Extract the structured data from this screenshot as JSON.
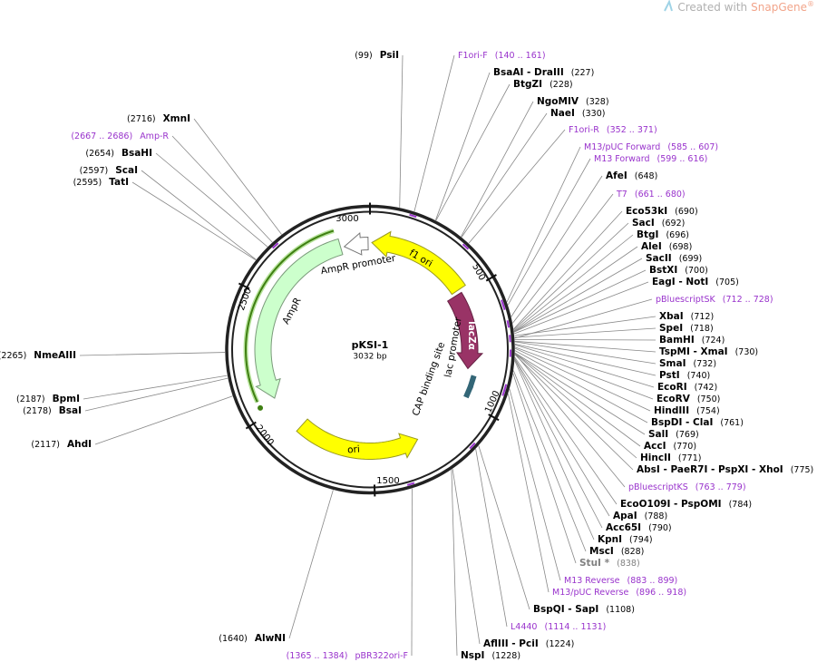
{
  "header": {
    "prefix": "Created with",
    "brand": "SnapGene",
    "mark": "®"
  },
  "plasmid": {
    "name": "pKSI-1",
    "length": "3032 bp"
  },
  "ruler": [
    "3000",
    "500",
    "1000",
    "1500",
    "2000",
    "2500"
  ],
  "features": [
    "f1 ori",
    "lacZα",
    "AmpR promoter",
    "AmpR",
    "ori",
    "lac promoter",
    "CAP binding site"
  ],
  "primer_color": "#9933cc",
  "enzymes": [
    {
      "name": "PsiI",
      "pos": "(99)"
    },
    {
      "name": "BsaAI - DraIII",
      "pos": "(227)"
    },
    {
      "name": "BtgZI",
      "pos": "(228)"
    },
    {
      "name": "NgoMIV",
      "pos": "(328)"
    },
    {
      "name": "NaeI",
      "pos": "(330)"
    },
    {
      "name": "AfeI",
      "pos": "(648)"
    },
    {
      "name": "Eco53kI",
      "pos": "(690)"
    },
    {
      "name": "SacI",
      "pos": "(692)"
    },
    {
      "name": "BtgI",
      "pos": "(696)"
    },
    {
      "name": "AleI",
      "pos": "(698)"
    },
    {
      "name": "SacII",
      "pos": "(699)"
    },
    {
      "name": "BstXI",
      "pos": "(700)"
    },
    {
      "name": "EagI - NotI",
      "pos": "(705)"
    },
    {
      "name": "XbaI",
      "pos": "(712)"
    },
    {
      "name": "SpeI",
      "pos": "(718)"
    },
    {
      "name": "BamHI",
      "pos": "(724)"
    },
    {
      "name": "TspMI - XmaI",
      "pos": "(730)"
    },
    {
      "name": "SmaI",
      "pos": "(732)"
    },
    {
      "name": "PstI",
      "pos": "(740)"
    },
    {
      "name": "EcoRI",
      "pos": "(742)"
    },
    {
      "name": "EcoRV",
      "pos": "(750)"
    },
    {
      "name": "HindIII",
      "pos": "(754)"
    },
    {
      "name": "BspDI - ClaI",
      "pos": "(761)"
    },
    {
      "name": "SalI",
      "pos": "(769)"
    },
    {
      "name": "AccI",
      "pos": "(770)"
    },
    {
      "name": "HincII",
      "pos": "(771)"
    },
    {
      "name": "AbsI - PaeR7I - PspXI - XhoI",
      "pos": "(775)"
    },
    {
      "name": "EcoO109I - PspOMI",
      "pos": "(784)"
    },
    {
      "name": "ApaI",
      "pos": "(788)"
    },
    {
      "name": "Acc65I",
      "pos": "(790)"
    },
    {
      "name": "KpnI",
      "pos": "(794)"
    },
    {
      "name": "MscI",
      "pos": "(828)"
    },
    {
      "name": "StuI *",
      "pos": "(838)",
      "color": "#808080"
    },
    {
      "name": "BspQI - SapI",
      "pos": "(1108)"
    },
    {
      "name": "AflIII - PciI",
      "pos": "(1224)"
    },
    {
      "name": "NspI",
      "pos": "(1228)"
    },
    {
      "name": "AlwNI",
      "pos": "(1640)"
    },
    {
      "name": "AhdI",
      "pos": "(2117)"
    },
    {
      "name": "BsaI",
      "pos": "(2178)"
    },
    {
      "name": "BpmI",
      "pos": "(2187)"
    },
    {
      "name": "NmeAIII",
      "pos": "(2265)"
    },
    {
      "name": "TatI",
      "pos": "(2595)"
    },
    {
      "name": "ScaI",
      "pos": "(2597)"
    },
    {
      "name": "BsaHI",
      "pos": "(2654)"
    },
    {
      "name": "XmnI",
      "pos": "(2716)"
    }
  ],
  "primers": [
    {
      "name": "F1ori-F",
      "pos": "(140 .. 161)"
    },
    {
      "name": "F1ori-R",
      "pos": "(352 .. 371)"
    },
    {
      "name": "M13/pUC Forward",
      "pos": "(585 .. 607)"
    },
    {
      "name": "M13 Forward",
      "pos": "(599 .. 616)"
    },
    {
      "name": "T7",
      "pos": "(661 .. 680)"
    },
    {
      "name": "pBluescriptSK",
      "pos": "(712 .. 728)"
    },
    {
      "name": "pBluescriptKS",
      "pos": "(763 .. 779)"
    },
    {
      "name": "M13 Reverse",
      "pos": "(883 .. 899)"
    },
    {
      "name": "M13/pUC Reverse",
      "pos": "(896 .. 918)"
    },
    {
      "name": "L4440",
      "pos": "(1114 .. 1131)"
    },
    {
      "name": "pBR322ori-F",
      "pos": "(1365 .. 1384)"
    },
    {
      "name": "Amp-R",
      "pos": "(2667 .. 2686)"
    }
  ]
}
